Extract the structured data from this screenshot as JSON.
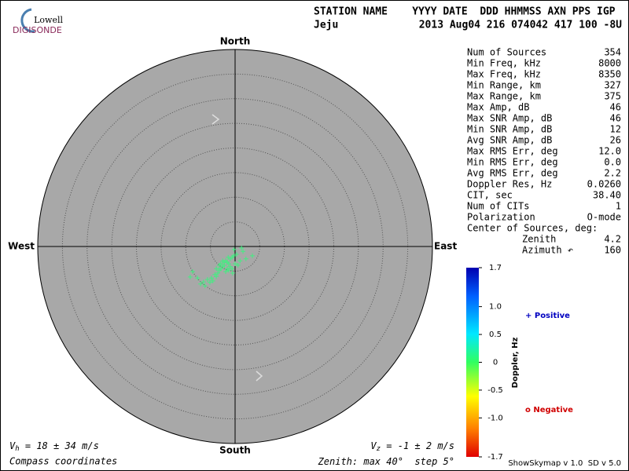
{
  "logo": {
    "top": "Lowell",
    "bottom": "DIGISONDE"
  },
  "header": {
    "labels": "STATION NAME    YYYY DATE  DDD HHMMSS AXN PPS IGP",
    "station": "Jeju",
    "info": "2013 Aug04 216 074042 417 100 -8U"
  },
  "stats": {
    "rows": [
      [
        "Num of Sources",
        "354"
      ],
      [
        "Min Freq, kHz",
        "8000"
      ],
      [
        "Max Freq, kHz",
        "8350"
      ],
      [
        "Min Range, km",
        "327"
      ],
      [
        "Max Range, km",
        "375"
      ],
      [
        "Max Amp, dB",
        "46"
      ],
      [
        "Max SNR Amp, dB",
        "46"
      ],
      [
        "Min SNR Amp, dB",
        "12"
      ],
      [
        "Avg SNR Amp, dB",
        "26"
      ],
      [
        "Max RMS Err, deg",
        "12.0"
      ],
      [
        "Min RMS Err, deg",
        "0.0"
      ],
      [
        "Avg RMS Err, deg",
        "2.2"
      ],
      [
        "Doppler Res, Hz",
        "0.0260"
      ],
      [
        "CIT, sec",
        "38.40"
      ],
      [
        "Num of CITs",
        "1"
      ],
      [
        "Polarization",
        "O-mode"
      ]
    ],
    "center_heading": "Center of Sources, deg:",
    "center_rows": [
      [
        "Zenith",
        "4.2"
      ],
      [
        "Azimuth ↶",
        "160"
      ]
    ]
  },
  "chart_data": {
    "type": "skymap",
    "directions": {
      "north": "North",
      "south": "South",
      "east": "East",
      "west": "West"
    },
    "point_color": "#40f080",
    "x": [
      -1.9,
      -1.6,
      -1.3,
      -2.2,
      -1.0,
      -0.6,
      -2.5,
      -2.9,
      -3.2,
      -3.5,
      -4.1,
      -4.8,
      -5.6,
      -6.4,
      -7.0,
      -8.6,
      -9.1,
      -7.6,
      -6.1,
      -5.1,
      -4.5,
      -3.8,
      -0.3,
      0.3,
      1.0,
      1.6,
      1.3,
      2.2,
      3.5,
      -1.6,
      -1.3,
      -1.0,
      -1.9,
      -2.2,
      0.0,
      -0.6,
      -2.9,
      -2.5,
      -3.2,
      -0.2,
      0.6,
      -3.8,
      -1.4,
      -0.5
    ],
    "y": [
      -2.9,
      -3.2,
      -3.5,
      -3.8,
      -2.5,
      -2.2,
      -4.1,
      -4.5,
      -4.8,
      -5.4,
      -5.7,
      -6.4,
      -6.7,
      -7.2,
      -7.6,
      -5.1,
      -6.2,
      -6.4,
      -8.0,
      -7.3,
      -7.0,
      -6.1,
      -1.9,
      -1.6,
      -2.9,
      -1.0,
      -0.3,
      -2.5,
      -1.9,
      -4.5,
      -4.8,
      -4.1,
      -5.1,
      -3.2,
      -3.5,
      -4.5,
      -3.5,
      -2.9,
      -3.8,
      -0.6,
      -3.8,
      -4.5,
      -2.2,
      -5.4
    ],
    "zenith": {
      "prefix": "Zenith: max ",
      "max": 40,
      "max_unit": "°",
      "step_label": "  step ",
      "step": 5,
      "step_unit": "°"
    },
    "colorbar": {
      "label": "Doppler, Hz",
      "lim": [
        -1.7,
        1.7
      ],
      "ticks": [
        1.7,
        {
          "value": 1.0,
          "label": "1.0"
        },
        0.5,
        0,
        -0.5,
        {
          "value": -1.0,
          "label": "-1.0"
        },
        -1.7
      ]
    },
    "legend": {
      "positive": "+ Positive",
      "positive_color": "#0000c0",
      "negative": "o Negative",
      "negative_color": "#d00000"
    },
    "vh": {
      "symbol": "V",
      "sub": "h",
      "text": " = 18 ± 34 m/s"
    },
    "vz": {
      "symbol": "V",
      "sub": "z",
      "text": " = -1 ± 2 m/s"
    },
    "coordinates": "Compass coordinates",
    "version": "ShowSkymap v 1.0  SD v 5.0"
  }
}
